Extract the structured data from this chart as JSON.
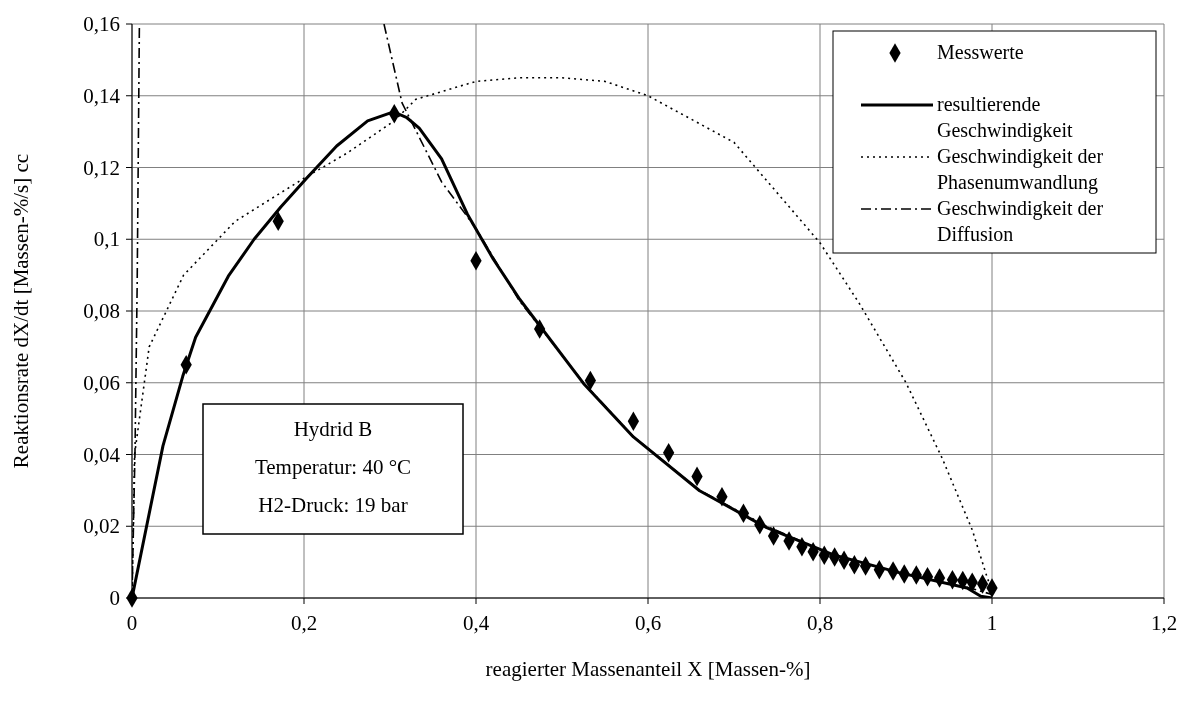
{
  "chart_data": {
    "type": "line",
    "xlabel": "reagierter Massenanteil X [Massen-%]",
    "ylabel": "Reaktionsrate dX/dt [Massen-%/s] cc",
    "xlim": [
      0,
      1.2
    ],
    "ylim": [
      0,
      0.16
    ],
    "xticks": [
      0,
      {
        "value": 0.2,
        "label": "0,2"
      },
      {
        "value": 0.4,
        "label": "0,4"
      },
      {
        "value": 0.6,
        "label": "0,6"
      },
      {
        "value": 0.8,
        "label": "0,8"
      },
      1,
      {
        "value": 1.2,
        "label": "1,2"
      }
    ],
    "yticks": [
      0,
      {
        "value": 0.02,
        "label": "0,02"
      },
      {
        "value": 0.04,
        "label": "0,04"
      },
      {
        "value": 0.06,
        "label": "0,06"
      },
      {
        "value": 0.08,
        "label": "0,08"
      },
      {
        "value": 0.1,
        "label": "0,1"
      },
      {
        "value": 0.12,
        "label": "0,12"
      },
      {
        "value": 0.14,
        "label": "0,14"
      },
      {
        "value": 0.16,
        "label": "0,16"
      }
    ],
    "grid": true,
    "legend": "top right",
    "annotations": [
      "Hydrid B",
      "Temperatur: 40 °C",
      "H2-Druck: 19 bar"
    ],
    "series": [
      {
        "name": "Messwerte",
        "type": "scatter",
        "marker": "diamond",
        "color": "#000000",
        "x": [
          0,
          0.063,
          0.17,
          0.305,
          0.4,
          0.474,
          0.533,
          0.583,
          0.624,
          0.657,
          0.686,
          0.711,
          0.73,
          0.746,
          0.764,
          0.779,
          0.792,
          0.805,
          0.817,
          0.828,
          0.84,
          0.853,
          0.869,
          0.885,
          0.898,
          0.912,
          0.925,
          0.939,
          0.954,
          0.966,
          0.977,
          0.989,
          1.0
        ],
        "values": [
          0,
          0.065,
          0.105,
          0.135,
          0.094,
          0.075,
          0.0606,
          0.0493,
          0.0405,
          0.0339,
          0.0282,
          0.0236,
          0.0204,
          0.0173,
          0.0159,
          0.0143,
          0.0129,
          0.0119,
          0.0114,
          0.0105,
          0.0093,
          0.0089,
          0.0079,
          0.0075,
          0.0067,
          0.0064,
          0.0059,
          0.0056,
          0.0051,
          0.0049,
          0.0044,
          0.0039,
          0.0028
        ]
      },
      {
        "name": "resultierende Geschwindigkeit",
        "line_style": "solid",
        "color": "#000000",
        "x": [
          0,
          0.036,
          0.059,
          0.074,
          0.112,
          0.142,
          0.173,
          0.203,
          0.238,
          0.274,
          0.304,
          0.319,
          0.334,
          0.36,
          0.39,
          0.42,
          0.451,
          0.525,
          0.583,
          0.66,
          0.738,
          0.815,
          0.893,
          0.971,
          0.987,
          1.0
        ],
        "values": [
          0,
          0.0424,
          0.0618,
          0.0727,
          0.0897,
          0.1,
          0.109,
          0.117,
          0.126,
          0.133,
          0.1355,
          0.134,
          0.131,
          0.1224,
          0.107,
          0.0945,
          0.0832,
          0.0598,
          0.0449,
          0.0299,
          0.0196,
          0.0121,
          0.007,
          0.0028,
          0.0005,
          0
        ]
      },
      {
        "name": "Geschwindigkeit der Phasenumwandlung",
        "line_style": "dotted",
        "color": "#000000",
        "x": [
          0,
          0.003,
          0.02,
          0.06,
          0.12,
          0.2,
          0.25,
          0.305,
          0.33,
          0.4,
          0.45,
          0.5,
          0.55,
          0.6,
          0.7,
          0.8,
          0.846,
          0.9,
          0.942,
          0.977,
          0.994,
          1.0
        ],
        "values": [
          0,
          0.04,
          0.07,
          0.09,
          0.105,
          0.117,
          0.124,
          0.133,
          0.139,
          0.144,
          0.145,
          0.145,
          0.144,
          0.14,
          0.127,
          0.099,
          0.082,
          0.06,
          0.039,
          0.019,
          0.006,
          0.002
        ]
      },
      {
        "name": "Geschwindigkeit der Diffusion",
        "line_style": "dashdot",
        "color": "#000000",
        "x": [
          0,
          0.0035,
          0.006,
          0.0086,
          0.1,
          0.293,
          0.314,
          0.36,
          0.4,
          0.45,
          0.525,
          0.583,
          0.66,
          0.738,
          0.815,
          0.893,
          0.971,
          1.0
        ],
        "values": [
          0,
          0.041,
          0.087,
          0.16,
          null,
          0.16,
          0.138,
          0.116,
          0.103,
          0.083,
          0.06,
          0.045,
          0.03,
          0.02,
          0.012,
          0.007,
          0.003,
          0.001
        ]
      }
    ]
  }
}
